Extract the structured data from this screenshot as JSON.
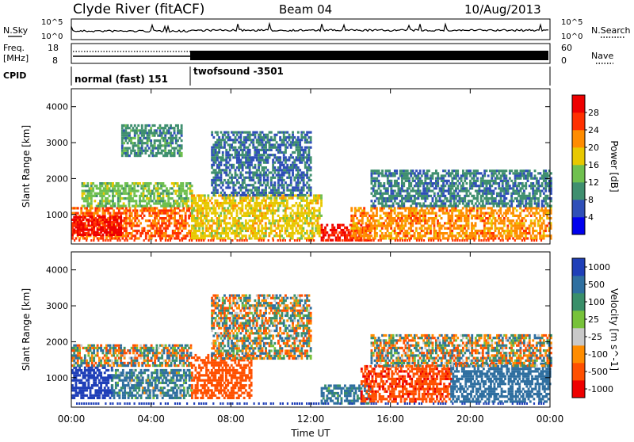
{
  "header": {
    "station": "Clyde River (fitACF)",
    "beam": "Beam 04",
    "date": "10/Aug/2013"
  },
  "noise_panel": {
    "left_label": "N.Sky",
    "left_ticks": [
      "10^5",
      "10^0"
    ],
    "right_ticks": [
      "10^5",
      "10^0"
    ],
    "right_label": "N.Search"
  },
  "freq_panel": {
    "left_label_line1": "Freq.",
    "left_label_line2": "[MHz]",
    "left_ticks": [
      "18",
      "8"
    ],
    "right_ticks": [
      "60",
      "0"
    ],
    "right_label": "Nave"
  },
  "cpid": {
    "label": "CPID",
    "segments": [
      {
        "name": "normal (fast) 151",
        "start_hour": 0,
        "end_hour": 6
      },
      {
        "name": "twofsound -3501",
        "start_hour": 6,
        "end_hour": 24
      }
    ]
  },
  "colors": {
    "power_scale": [
      "#0000ee",
      "#2f4fb8",
      "#3f8f6f",
      "#6fc04f",
      "#e8c800",
      "#ff8c00",
      "#ff3000",
      "#ee0000"
    ],
    "velocity_scale": [
      "#1f3fb8",
      "#2f6fa0",
      "#3a8f6a",
      "#77c23a",
      "#c9c9c9",
      "#ff8c00",
      "#ff5000",
      "#ee0000"
    ]
  },
  "chart_data": [
    {
      "type": "heatmap",
      "title": "",
      "xlabel": "",
      "ylabel": "Slant Range [km]",
      "xlim_hours": [
        0,
        24
      ],
      "ylim_km": [
        180,
        4500
      ],
      "y_ticks": [
        "1000",
        "2000",
        "3000",
        "4000"
      ],
      "colorbar": {
        "label": "Power [dB]",
        "ticks": [
          "4",
          "8",
          "12",
          "16",
          "20",
          "24",
          "28"
        ],
        "range": [
          0,
          32
        ]
      },
      "layers": [
        {
          "t0": 0.0,
          "t1": 6.0,
          "r0": 300,
          "r1": 1200,
          "value": 24
        },
        {
          "t0": 0.0,
          "t1": 2.5,
          "r0": 400,
          "r1": 900,
          "value": 30
        },
        {
          "t0": 0.5,
          "t1": 6.0,
          "r0": 1200,
          "r1": 1900,
          "value": 14
        },
        {
          "t0": 2.5,
          "t1": 5.5,
          "r0": 2600,
          "r1": 3500,
          "value": 10
        },
        {
          "t0": 6.0,
          "t1": 12.5,
          "r0": 300,
          "r1": 1500,
          "value": 18
        },
        {
          "t0": 7.0,
          "t1": 12.0,
          "r0": 1500,
          "r1": 3300,
          "value": 8
        },
        {
          "t0": 12.5,
          "t1": 15.0,
          "r0": 250,
          "r1": 700,
          "value": 28
        },
        {
          "t0": 14.0,
          "t1": 24.0,
          "r0": 300,
          "r1": 1200,
          "value": 22
        },
        {
          "t0": 15.0,
          "t1": 24.0,
          "r0": 1200,
          "r1": 2200,
          "value": 9
        }
      ]
    },
    {
      "type": "heatmap",
      "title": "",
      "xlabel": "Time UT",
      "ylabel": "Slant Range [km]",
      "xlim_hours": [
        0,
        24
      ],
      "ylim_km": [
        180,
        4500
      ],
      "x_ticks": [
        "00:00",
        "04:00",
        "08:00",
        "12:00",
        "16:00",
        "20:00",
        "00:00"
      ],
      "y_ticks": [
        "1000",
        "2000",
        "3000",
        "4000"
      ],
      "colorbar": {
        "label": "Velocity [m s^-1]",
        "ticks": [
          "1000",
          "500",
          "100",
          "25",
          "-25",
          "-100",
          "-500",
          "-1000"
        ],
        "range": [
          -1000,
          1000
        ]
      },
      "layers": [
        {
          "t0": 0.0,
          "t1": 2.0,
          "r0": 400,
          "r1": 1300,
          "value": 900
        },
        {
          "t0": 0.0,
          "t1": 6.0,
          "r0": 1300,
          "r1": 1900,
          "value": 0
        },
        {
          "t0": 2.0,
          "t1": 6.0,
          "r0": 400,
          "r1": 1200,
          "value": 150
        },
        {
          "t0": 6.0,
          "t1": 9.0,
          "r0": 400,
          "r1": 1600,
          "value": -300
        },
        {
          "t0": 7.0,
          "t1": 12.0,
          "r0": 1500,
          "r1": 3300,
          "value": 0
        },
        {
          "t0": 12.5,
          "t1": 15.0,
          "r0": 250,
          "r1": 800,
          "value": 200
        },
        {
          "t0": 14.5,
          "t1": 19.0,
          "r0": 300,
          "r1": 1300,
          "value": -400
        },
        {
          "t0": 19.0,
          "t1": 24.0,
          "r0": 300,
          "r1": 1400,
          "value": 300
        },
        {
          "t0": 15.0,
          "t1": 24.0,
          "r0": 1300,
          "r1": 2200,
          "value": 0
        }
      ]
    }
  ]
}
